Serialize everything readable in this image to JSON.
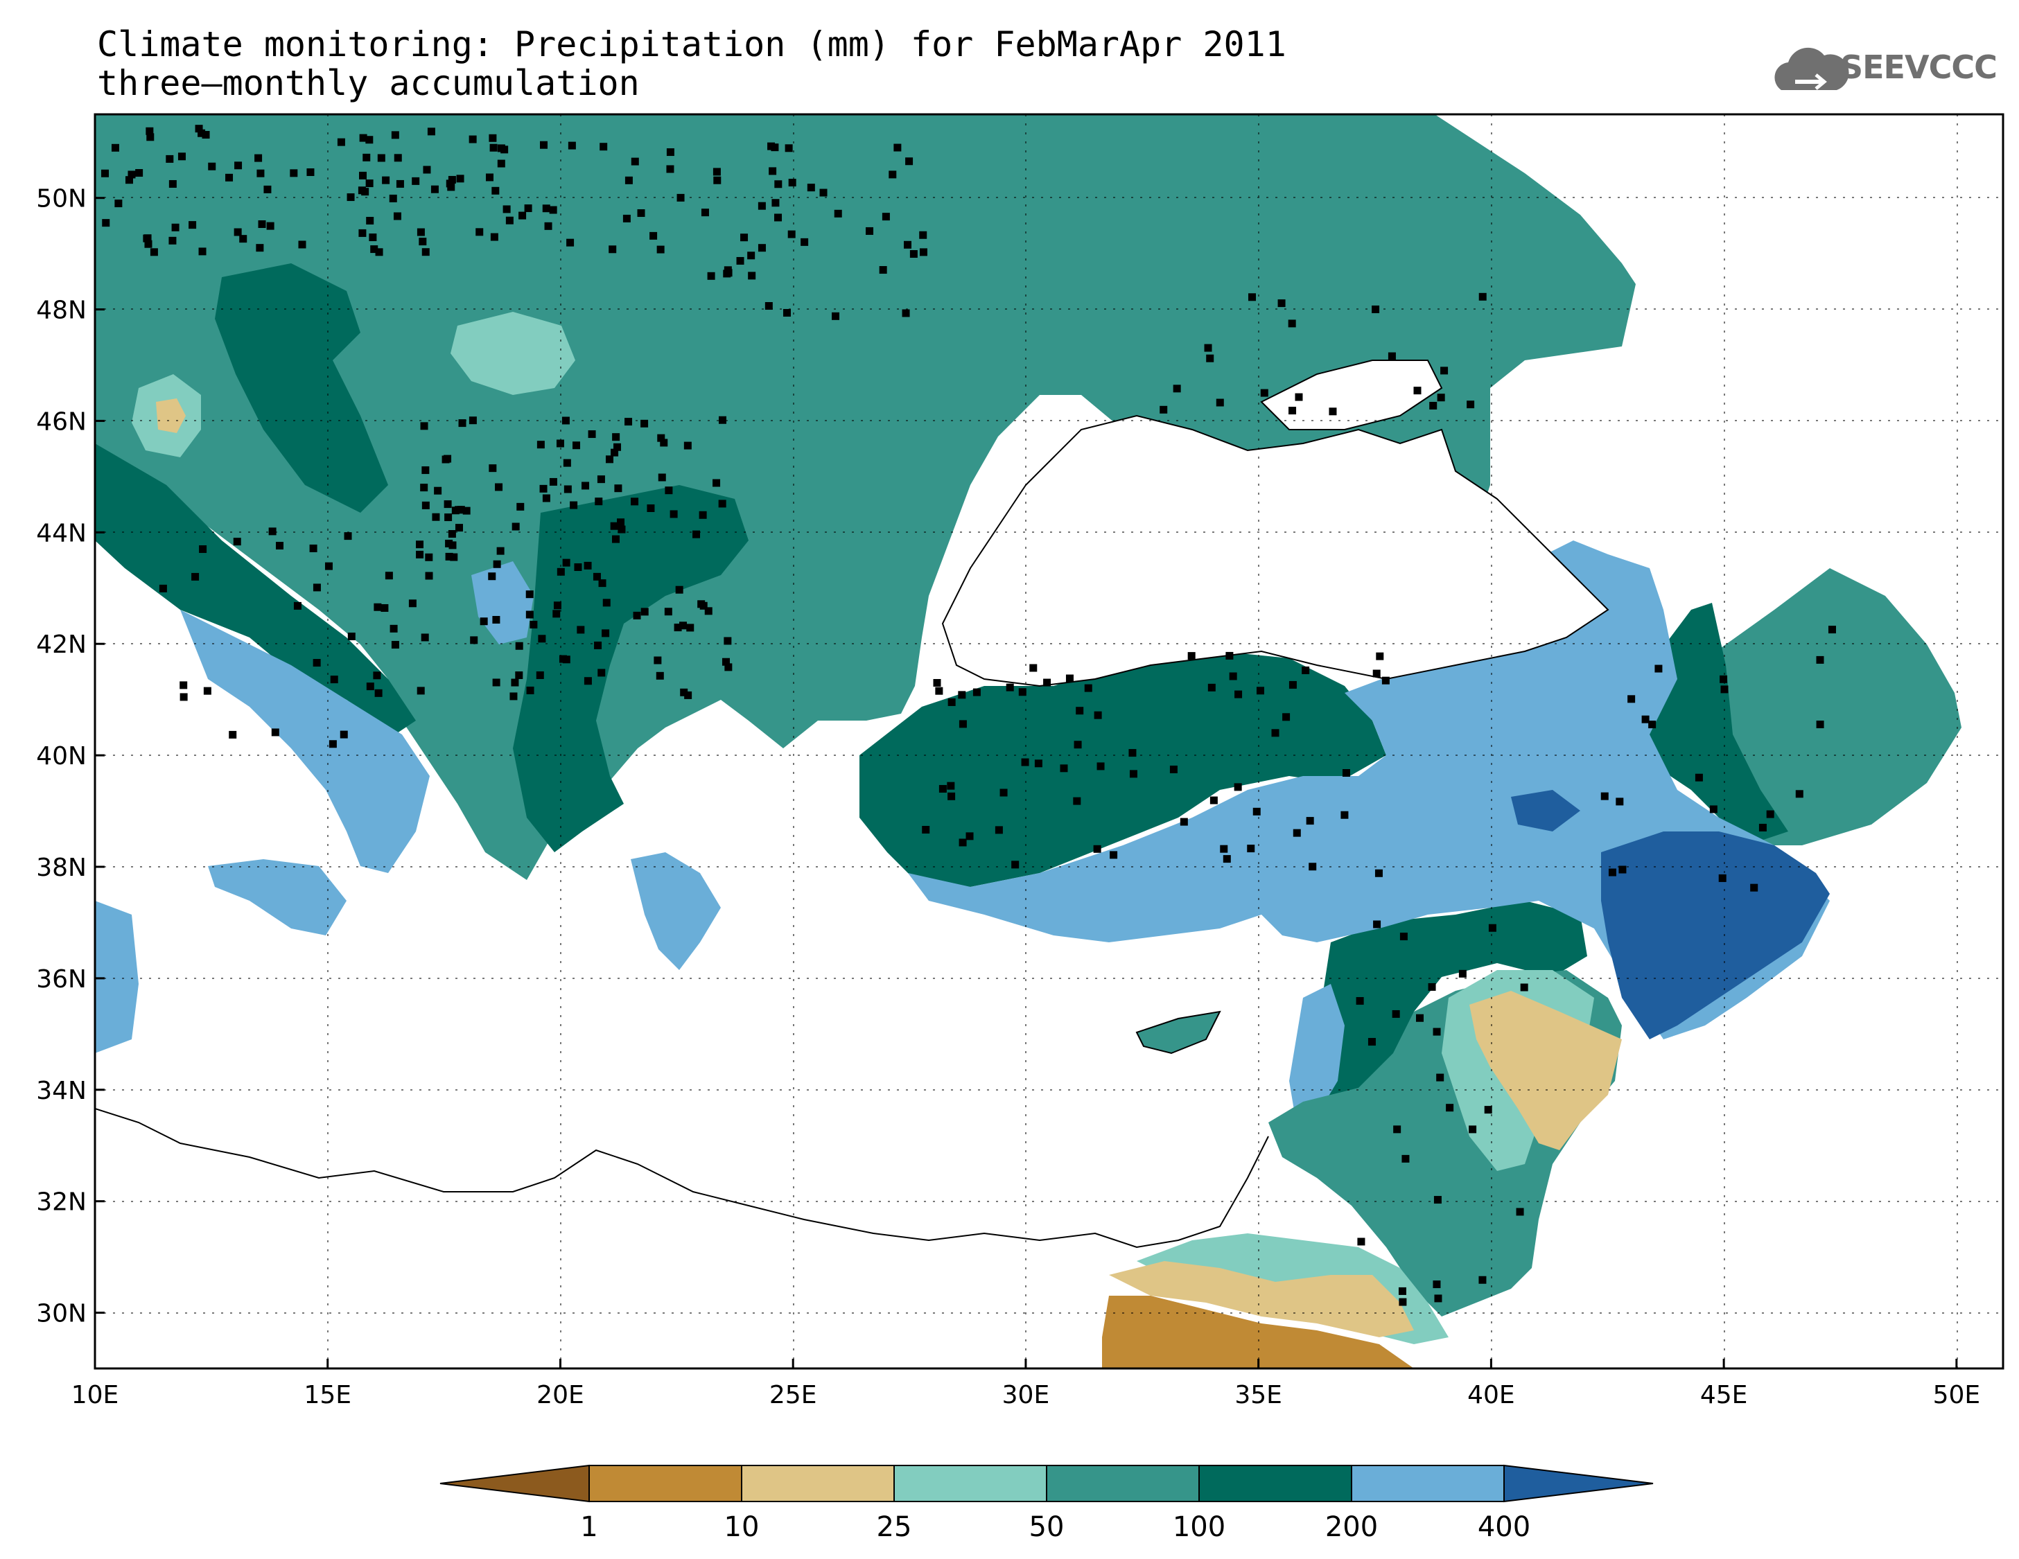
{
  "title": {
    "line1": "Climate monitoring: Precipitation (mm) for FebMarApr 2011",
    "line2": "three—monthly accumulation"
  },
  "logo": {
    "text": "SEEVCCC",
    "icon": "cloud-icon"
  },
  "map": {
    "lon_range": [
      10,
      51
    ],
    "lat_range": [
      29,
      51.5
    ],
    "lon_ticks": [
      "10E",
      "15E",
      "20E",
      "25E",
      "30E",
      "35E",
      "40E",
      "45E",
      "50E"
    ],
    "lat_ticks": [
      "50N",
      "48N",
      "46N",
      "44N",
      "42N",
      "40N",
      "38N",
      "36N",
      "34N",
      "32N",
      "30N"
    ],
    "grid": "dotted",
    "stations": "black squares"
  },
  "colorbar": {
    "labels": [
      "1",
      "10",
      "25",
      "50",
      "100",
      "200",
      "400"
    ],
    "colors": [
      "#8c5a1e",
      "#c08a35",
      "#dfc586",
      "#82cdbf",
      "#36958a",
      "#006a5c",
      "#6aaed8",
      "#1f5e9e"
    ]
  },
  "palette": {
    "lt1": "#8c5a1e",
    "c1_10": "#c08a35",
    "c10_25": "#dfc586",
    "c25_50": "#82cdbf",
    "c50_100": "#36958a",
    "c100_200": "#006a5c",
    "c200_400": "#6aaed8",
    "gt400": "#1f5e9e",
    "sea": "#ffffff"
  }
}
